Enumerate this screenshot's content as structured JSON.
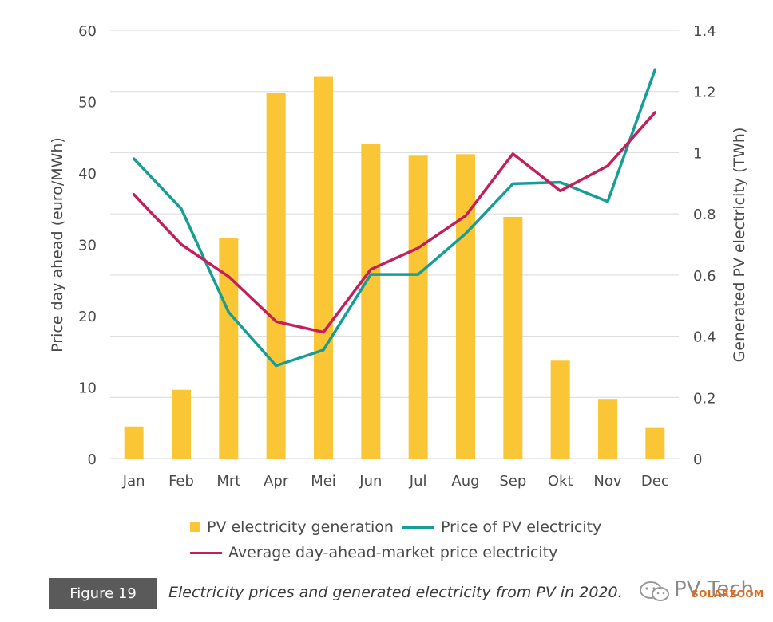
{
  "chart_data": {
    "type": "bar+line",
    "categories": [
      "Jan",
      "Feb",
      "Mrt",
      "Apr",
      "Mei",
      "Jun",
      "Jul",
      "Aug",
      "Sep",
      "Okt",
      "Nov",
      "Dec"
    ],
    "left_axis": {
      "label": "Price day ahead (euro/MWh)",
      "ylim": [
        0,
        60
      ],
      "ticks": [
        "0",
        "10",
        "20",
        "30",
        "40",
        "50",
        "60"
      ]
    },
    "right_axis": {
      "label": "Generated PV electricity (TWh)",
      "ylim": [
        0,
        1.4
      ],
      "ticks": [
        "0",
        "0.2",
        "0.4",
        "0.6",
        "0.8",
        "1",
        "1.2",
        "1.4"
      ]
    },
    "grid": "horizontal",
    "series": [
      {
        "name": "PV electricity generation",
        "type": "bar",
        "axis": "right",
        "color": "#fbc636",
        "values": [
          0.105,
          0.225,
          0.72,
          1.195,
          1.25,
          1.03,
          0.99,
          0.995,
          0.79,
          0.32,
          0.195,
          0.1
        ]
      },
      {
        "name": "Price of PV electricity",
        "type": "line",
        "axis": "left",
        "color": "#159d96",
        "values": [
          42,
          35,
          20.5,
          13,
          15.2,
          25.8,
          25.8,
          31.5,
          38.5,
          38.7,
          36,
          54.5
        ]
      },
      {
        "name": "Average day-ahead-market price electricity",
        "type": "line",
        "axis": "left",
        "color": "#c41e5b",
        "values": [
          37,
          30,
          25.5,
          19.2,
          17.7,
          26.5,
          29.5,
          34,
          42.7,
          37.5,
          41,
          48.5
        ]
      }
    ]
  },
  "caption": {
    "figure_label": "Figure 19",
    "text": "Electricity prices and generated electricity from PV in 2020."
  },
  "watermark": {
    "brand": "PV Tech",
    "sub": "SOLARZOOM"
  }
}
